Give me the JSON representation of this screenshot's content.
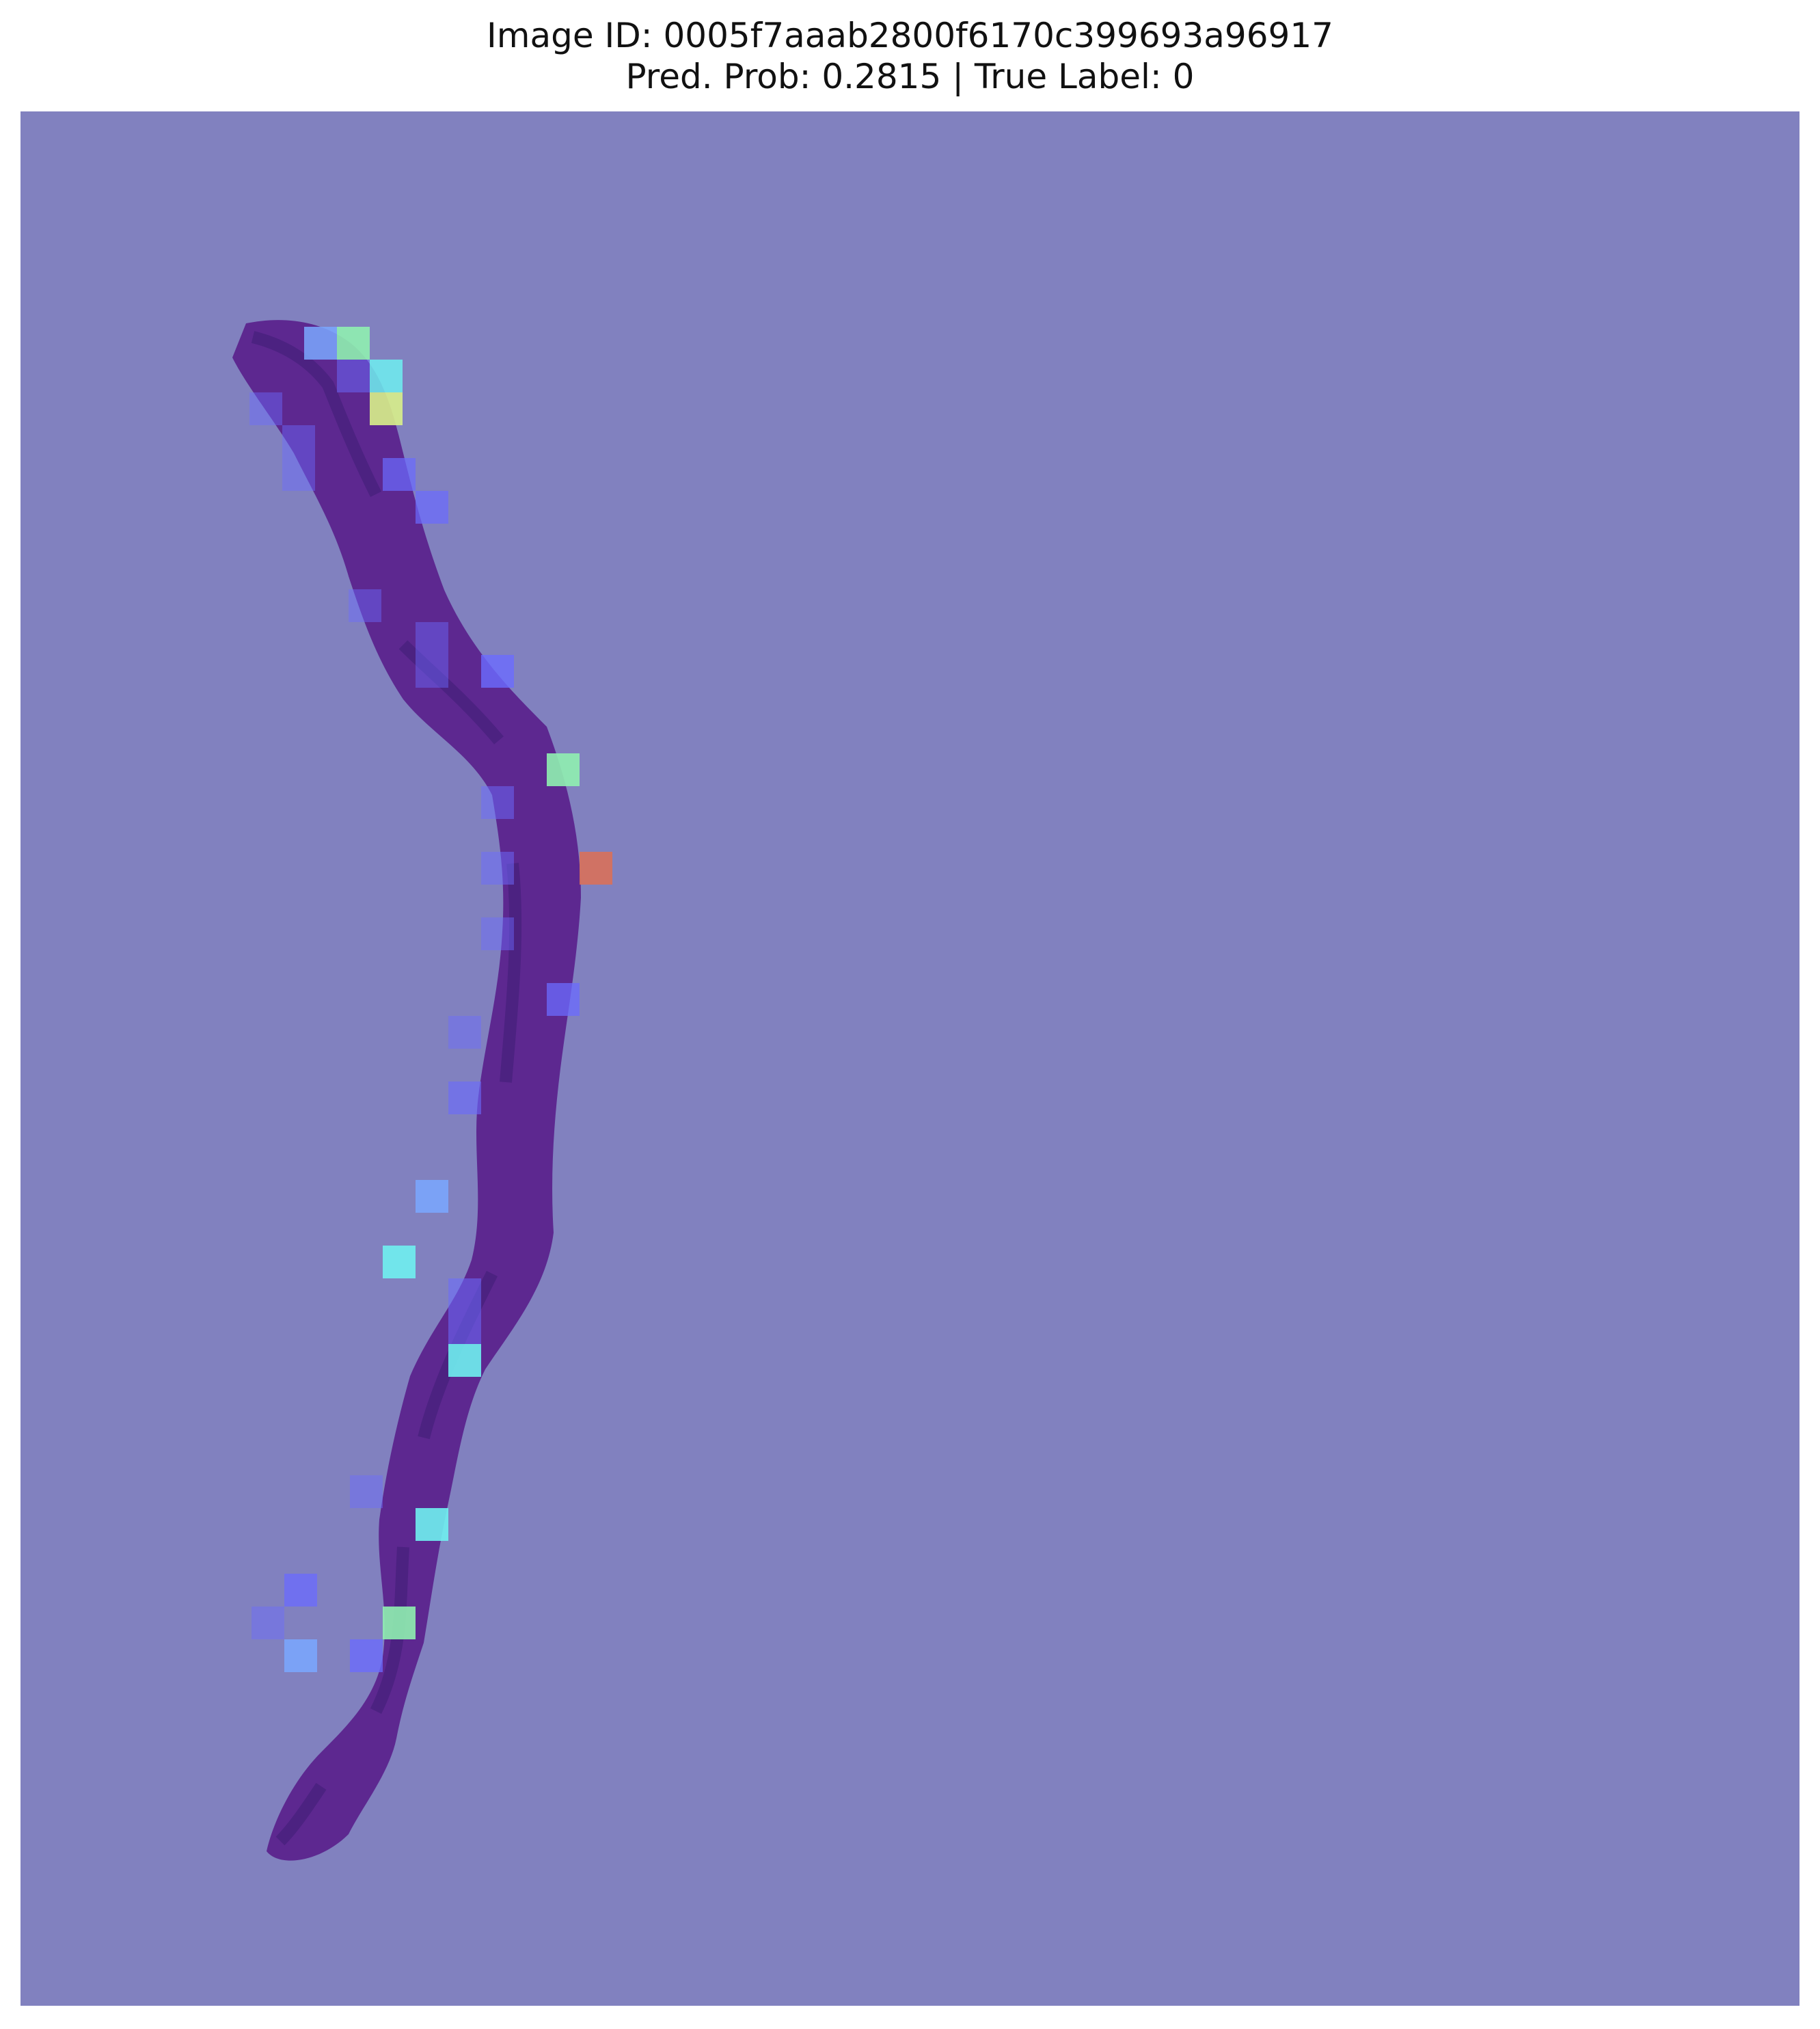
{
  "title": {
    "line1": "Image ID: 0005f7aaab2800f6170c399693a96917",
    "line2": "Pred. Prob: 0.2815 | True Label: 0"
  },
  "colors": {
    "background_overlay": "#8181bf",
    "tissue": "#5a1f8c",
    "tissue_dark": "#3a1470",
    "patch_blue": "#6b6bff",
    "patch_lightblue": "#7aa8ff",
    "patch_cyan": "#6ff0f0",
    "patch_green": "#8ff0b0",
    "patch_yellow": "#d8f08a",
    "patch_red": "#d8705a"
  }
}
